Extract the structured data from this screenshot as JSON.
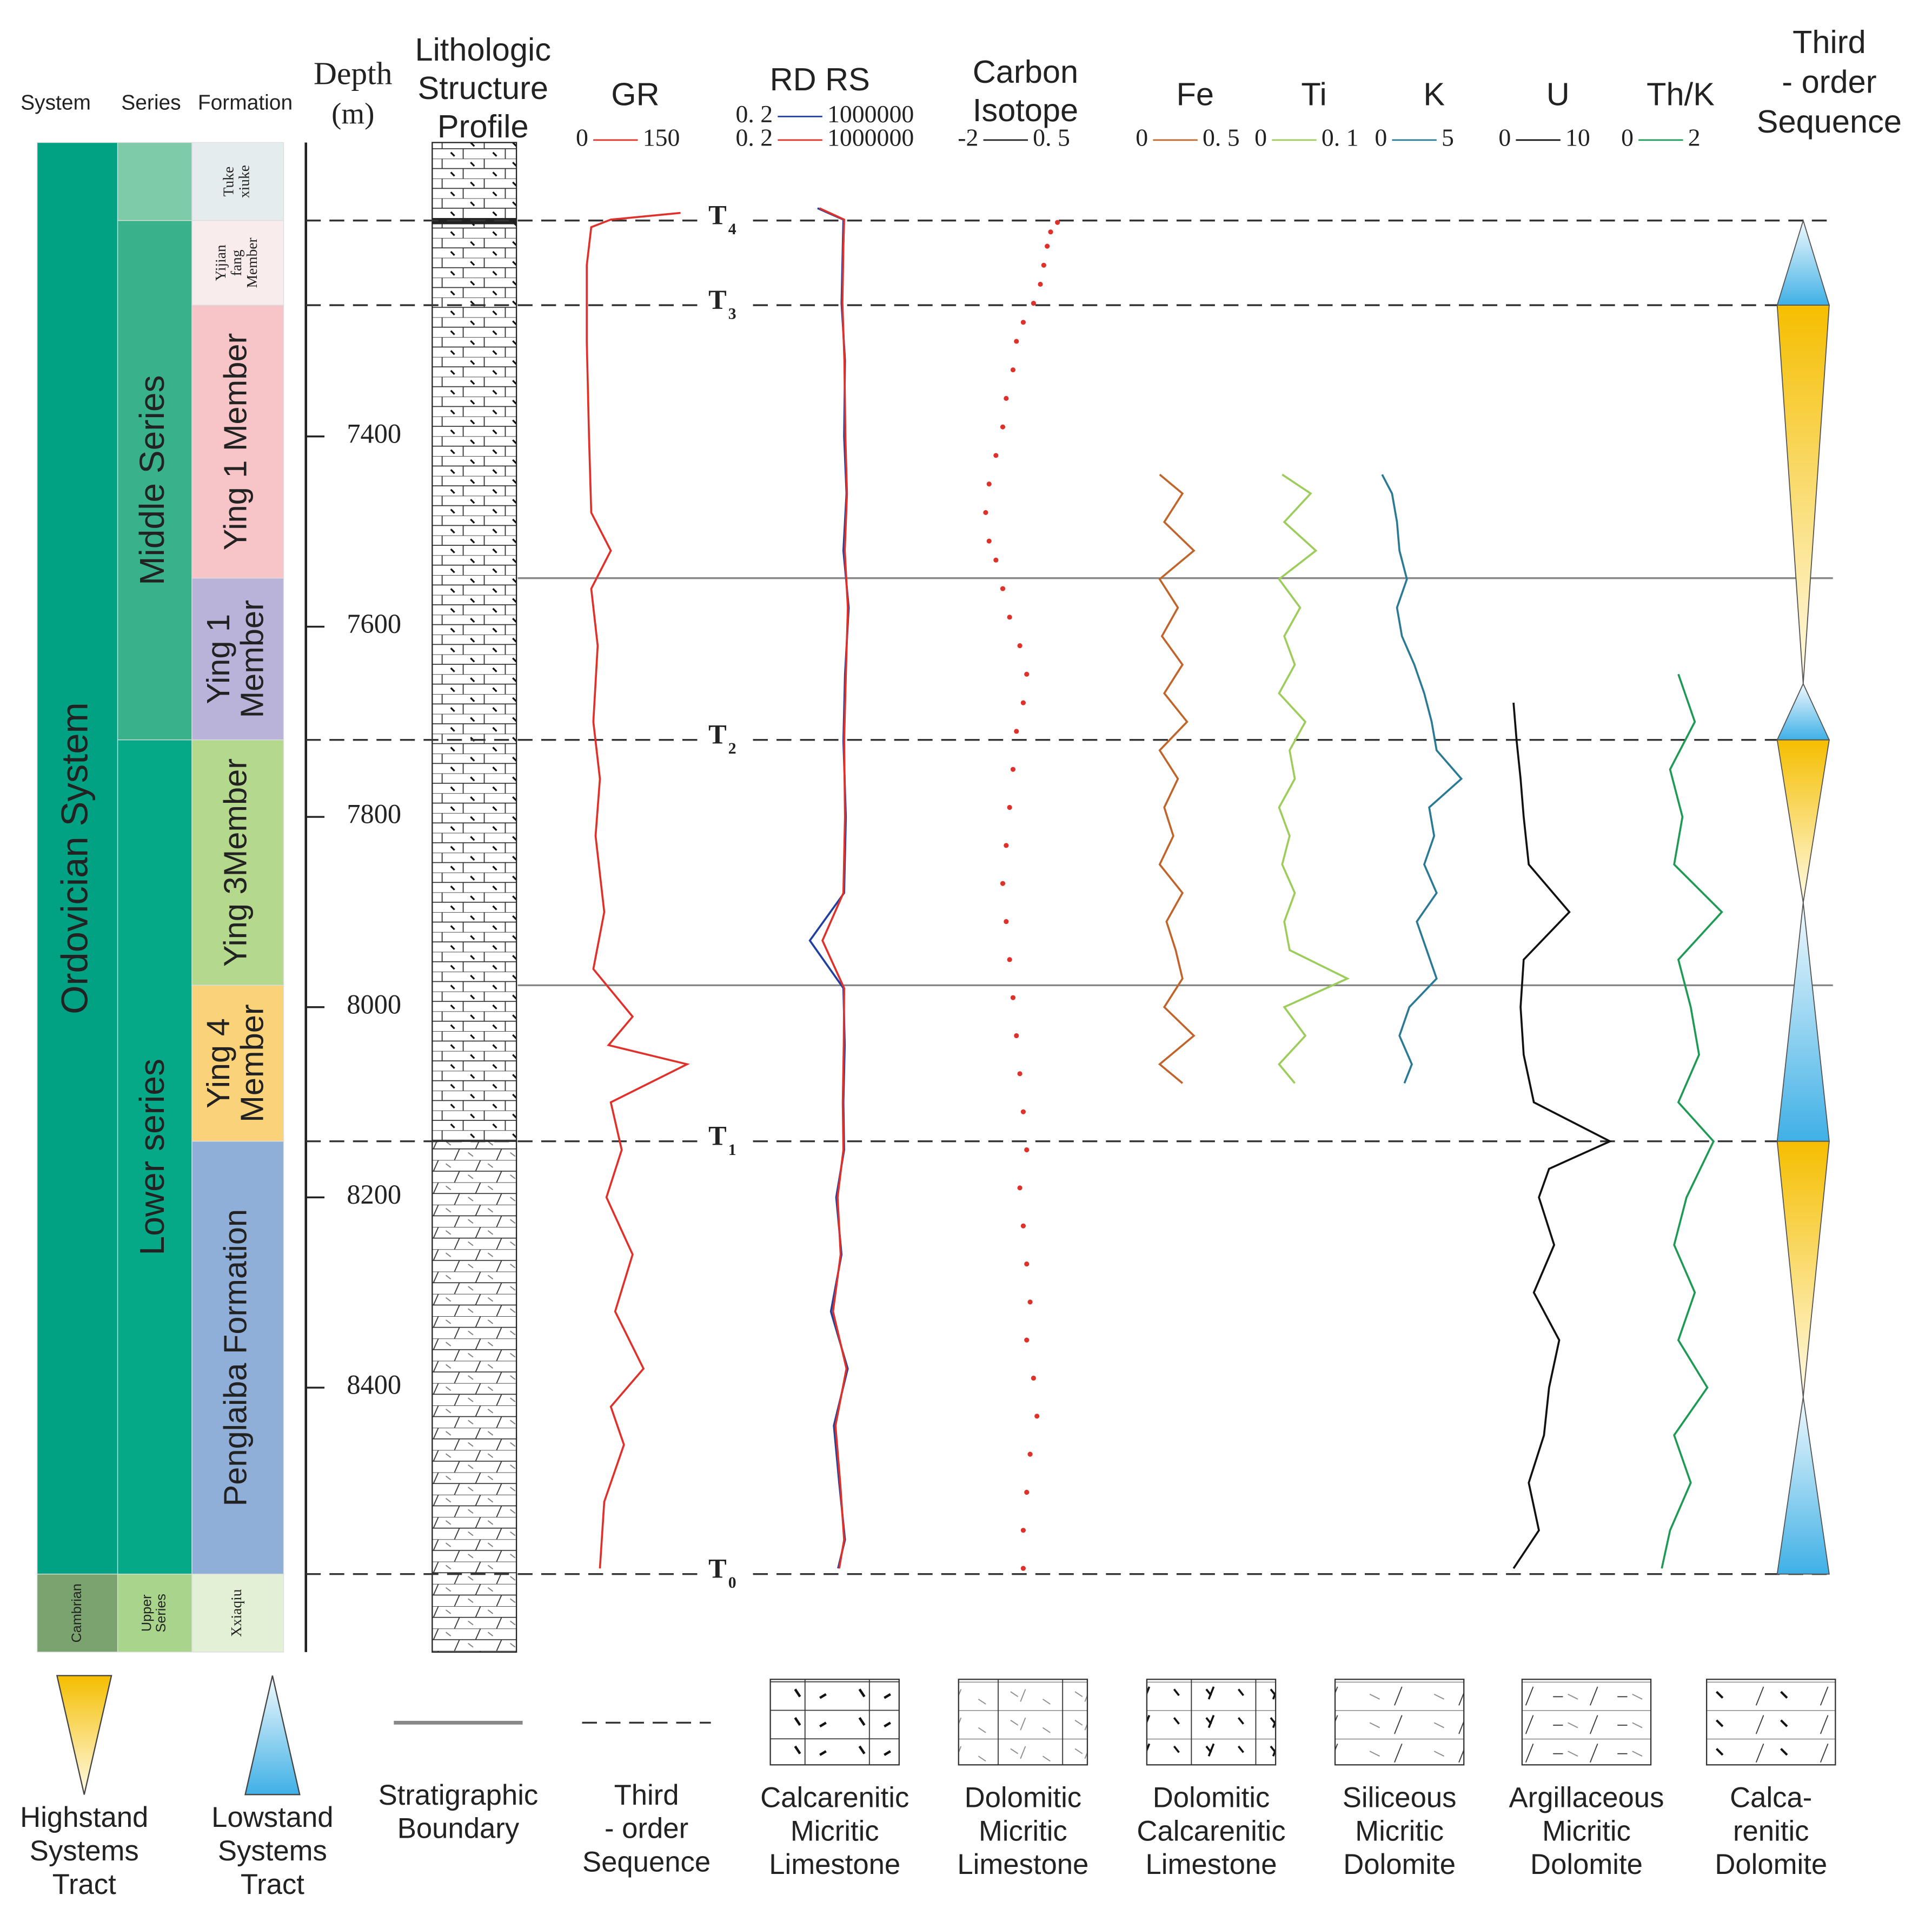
{
  "header": {
    "system": "System",
    "series": "Series",
    "formation": "Formation",
    "depth": "Depth",
    "depth_unit": "(m)",
    "lithology": [
      "Lithologic",
      "Structure",
      "Profile"
    ],
    "sequence": [
      "Third",
      "- order",
      "Sequence"
    ]
  },
  "depth_axis": {
    "range": [
      7091,
      8678
    ],
    "ticks": [
      7400,
      7600,
      7800,
      8000,
      8200,
      8400
    ]
  },
  "systems": [
    {
      "lines": [
        "Ordovician System"
      ],
      "top": 7091,
      "base": 8596,
      "color": "#00a283"
    },
    {
      "lines": [
        "Cambrian"
      ],
      "top": 8596,
      "base": 8678,
      "color": "#7aa36f"
    }
  ],
  "series": [
    {
      "top": 7091,
      "base": 7173,
      "color": "#7ecba7"
    },
    {
      "lines": [
        "Middle Series"
      ],
      "top": 7173,
      "base": 7719,
      "color": "#39b28b"
    },
    {
      "lines": [
        "Lower series"
      ],
      "top": 7719,
      "base": 8596,
      "color": "#05a887"
    },
    {
      "lines": [
        "Upper",
        "Series"
      ],
      "top": 8596,
      "base": 8678,
      "color": "#a8d48c"
    }
  ],
  "formations": [
    {
      "lines": [
        "Tuke",
        "xiuke"
      ],
      "top": 7091,
      "base": 7173,
      "color": "#e4ecee",
      "serif": true
    },
    {
      "lines": [
        "Yijian",
        "fang",
        "Member"
      ],
      "top": 7173,
      "base": 7262,
      "color": "#f8ecec",
      "serif": true
    },
    {
      "lines": [
        "Ying 1 Member"
      ],
      "top": 7262,
      "base": 7549,
      "color": "#f7c4c8"
    },
    {
      "lines": [
        "Ying 1",
        "Member"
      ],
      "top": 7549,
      "base": 7719,
      "color": "#b9b3d9"
    },
    {
      "lines": [
        "Ying 3Member"
      ],
      "top": 7719,
      "base": 7977,
      "color": "#b5d98c"
    },
    {
      "lines": [
        "Ying 4",
        "Member"
      ],
      "top": 7977,
      "base": 8141,
      "color": "#fad27a"
    },
    {
      "lines": [
        "Penglaiba Formation"
      ],
      "top": 8141,
      "base": 8596,
      "color": "#8faed8"
    },
    {
      "lines": [
        "Xxiaqiu"
      ],
      "top": 8596,
      "base": 8678,
      "color": "#e2f0d6",
      "serif": true
    }
  ],
  "boundaries": [
    {
      "label": "T",
      "sub": "4",
      "depth": 7173
    },
    {
      "label": "T",
      "sub": "3",
      "depth": 7262
    },
    {
      "label": "T",
      "sub": "2",
      "depth": 7719
    },
    {
      "label": "T",
      "sub": "1",
      "depth": 8141
    },
    {
      "label": "T",
      "sub": "0",
      "depth": 8596
    }
  ],
  "stratigraphic_lines": [
    7549,
    7977
  ],
  "sequences": [
    {
      "kind": "lowstand",
      "top": 7173,
      "base": 7262
    },
    {
      "kind": "highstand",
      "top": 7262,
      "base": 7660
    },
    {
      "kind": "lowstand",
      "top": 7660,
      "base": 7719
    },
    {
      "kind": "highstand",
      "top": 7719,
      "base": 7890
    },
    {
      "kind": "lowstand",
      "top": 7890,
      "base": 8141
    },
    {
      "kind": "highstand",
      "top": 8141,
      "base": 8410
    },
    {
      "kind": "lowstand",
      "top": 8410,
      "base": 8596
    }
  ],
  "tracks": [
    {
      "title": [
        "GR"
      ],
      "style": "line",
      "scales": [
        {
          "min": 0,
          "max": 150,
          "color": "#e0302a"
        }
      ],
      "depth": [
        7165,
        7172,
        7180,
        7220,
        7300,
        7400,
        7480,
        7520,
        7560,
        7620,
        7700,
        7760,
        7820,
        7900,
        7960,
        8010,
        8040,
        8060,
        8100,
        8150,
        8200,
        8260,
        8320,
        8380,
        8420,
        8460,
        8520,
        8590
      ],
      "series": [
        {
          "color": "#e0302a",
          "values": [
            104,
            40,
            22,
            18,
            18,
            20,
            22,
            40,
            22,
            28,
            24,
            30,
            26,
            34,
            24,
            60,
            38,
            110,
            40,
            50,
            36,
            60,
            44,
            70,
            40,
            52,
            34,
            30
          ]
        }
      ]
    },
    {
      "title": [
        "RD RS"
      ],
      "style": "line",
      "log": true,
      "scales": [
        {
          "min": {
            "value": 0.2,
            "label": "0. 2"
          },
          "max": 1000000,
          "color": "#2040a0"
        },
        {
          "min": {
            "value": 0.2,
            "label": "0. 2"
          },
          "max": 1000000,
          "color": "#e0302a"
        }
      ],
      "depth": [
        7160,
        7172,
        7200,
        7260,
        7320,
        7400,
        7460,
        7520,
        7580,
        7650,
        7720,
        7800,
        7880,
        7930,
        7980,
        8040,
        8100,
        8150,
        8200,
        8260,
        8320,
        8380,
        8440,
        8500,
        8560,
        8590
      ],
      "series": [
        {
          "color": "#2040a0",
          "values": [
            250,
            3000,
            2800,
            2500,
            3500,
            3200,
            4000,
            3000,
            5000,
            3500,
            3000,
            3800,
            3200,
            120,
            3000,
            3400,
            3000,
            3200,
            1500,
            2500,
            900,
            4500,
            1200,
            2000,
            3500,
            1800
          ]
        },
        {
          "color": "#e0302a",
          "values": [
            300,
            3200,
            3000,
            2700,
            3300,
            3600,
            4200,
            3400,
            4600,
            3800,
            3200,
            3500,
            3000,
            400,
            3200,
            3100,
            2800,
            3000,
            1700,
            2300,
            1100,
            4000,
            1400,
            2200,
            3200,
            2000
          ]
        }
      ]
    },
    {
      "title": [
        "Carbon",
        "Isotope"
      ],
      "style": "dots",
      "scales": [
        {
          "min": -2,
          "max": {
            "value": 0.5,
            "label": "0. 5"
          },
          "color": "#222222"
        }
      ],
      "depth": [
        7175,
        7185,
        7200,
        7220,
        7240,
        7260,
        7280,
        7300,
        7330,
        7360,
        7390,
        7420,
        7450,
        7480,
        7510,
        7530,
        7560,
        7590,
        7620,
        7650,
        7680,
        7710,
        7750,
        7790,
        7830,
        7870,
        7910,
        7950,
        7990,
        8030,
        8070,
        8110,
        8150,
        8190,
        8230,
        8270,
        8310,
        8350,
        8390,
        8430,
        8470,
        8510,
        8550,
        8590
      ],
      "series": [
        {
          "color": "#e0302a",
          "values": [
            -0.3,
            -0.4,
            -0.45,
            -0.5,
            -0.55,
            -0.65,
            -0.8,
            -0.9,
            -0.95,
            -1.05,
            -1.1,
            -1.2,
            -1.3,
            -1.35,
            -1.3,
            -1.2,
            -1.1,
            -1.0,
            -0.85,
            -0.75,
            -0.8,
            -0.9,
            -0.95,
            -1.0,
            -1.05,
            -1.1,
            -1.05,
            -1.0,
            -0.95,
            -0.9,
            -0.85,
            -0.8,
            -0.75,
            -0.85,
            -0.8,
            -0.75,
            -0.7,
            -0.75,
            -0.65,
            -0.6,
            -0.7,
            -0.75,
            -0.8,
            -0.8
          ]
        }
      ]
    },
    {
      "title": [
        "Fe"
      ],
      "style": "line",
      "scales": [
        {
          "min": 0,
          "max": {
            "value": 0.5,
            "label": "0. 5"
          },
          "color": "#c0642a"
        }
      ],
      "depth": [
        7440,
        7460,
        7490,
        7520,
        7550,
        7580,
        7610,
        7640,
        7670,
        7700,
        7730,
        7760,
        7790,
        7820,
        7850,
        7880,
        7910,
        7940,
        7970,
        8000,
        8030,
        8060,
        8080
      ],
      "series": [
        {
          "color": "#c0642a",
          "values": [
            0.1,
            0.2,
            0.12,
            0.25,
            0.1,
            0.18,
            0.11,
            0.2,
            0.12,
            0.22,
            0.1,
            0.18,
            0.12,
            0.16,
            0.1,
            0.2,
            0.13,
            0.17,
            0.2,
            0.12,
            0.25,
            0.1,
            0.2
          ]
        }
      ]
    },
    {
      "title": [
        "Ti"
      ],
      "style": "line",
      "scales": [
        {
          "min": 0,
          "max": {
            "value": 0.1,
            "label": "0. 1"
          },
          "color": "#9ccc5a"
        }
      ],
      "depth": [
        7440,
        7460,
        7490,
        7520,
        7550,
        7580,
        7610,
        7640,
        7670,
        7700,
        7730,
        7760,
        7790,
        7820,
        7850,
        7880,
        7910,
        7940,
        7970,
        8000,
        8030,
        8060,
        8080
      ],
      "series": [
        {
          "color": "#9ccc5a",
          "values": [
            0.018,
            0.045,
            0.02,
            0.05,
            0.015,
            0.035,
            0.02,
            0.03,
            0.015,
            0.04,
            0.025,
            0.03,
            0.015,
            0.025,
            0.018,
            0.03,
            0.02,
            0.025,
            0.08,
            0.02,
            0.04,
            0.015,
            0.03
          ]
        }
      ]
    },
    {
      "title": [
        "K"
      ],
      "style": "line",
      "scales": [
        {
          "min": 0,
          "max": 5,
          "color": "#2a7a96"
        }
      ],
      "depth": [
        7440,
        7460,
        7490,
        7520,
        7550,
        7580,
        7610,
        7640,
        7670,
        7700,
        7730,
        7760,
        7790,
        7820,
        7850,
        7880,
        7910,
        7940,
        7970,
        8000,
        8030,
        8060,
        8080
      ],
      "series": [
        {
          "color": "#2a7a96",
          "values": [
            0.8,
            1.2,
            1.4,
            1.5,
            1.8,
            1.4,
            1.6,
            2.1,
            2.5,
            2.8,
            3.0,
            4.0,
            2.7,
            2.9,
            2.5,
            3.0,
            2.2,
            2.6,
            3.0,
            1.9,
            1.5,
            2.0,
            1.7
          ]
        }
      ]
    },
    {
      "title": [
        "U"
      ],
      "style": "line",
      "scales": [
        {
          "min": 0,
          "max": 10,
          "color": "#111111"
        }
      ],
      "depth": [
        7680,
        7720,
        7760,
        7800,
        7850,
        7900,
        7950,
        8000,
        8050,
        8100,
        8141,
        8170,
        8200,
        8250,
        8300,
        8350,
        8400,
        8450,
        8500,
        8550,
        8590
      ],
      "series": [
        {
          "color": "#111111",
          "values": [
            0.5,
            0.8,
            1.2,
            1.5,
            2,
            6,
            1.5,
            1.2,
            1.5,
            2.5,
            10,
            4,
            3,
            4.5,
            2.5,
            5,
            4,
            3.5,
            2,
            3,
            0.5
          ]
        }
      ]
    },
    {
      "title": [
        "Th/K"
      ],
      "style": "line",
      "scales": [
        {
          "min": 0,
          "max": 2,
          "color": "#1f9a55"
        }
      ],
      "depth": [
        7650,
        7700,
        7750,
        7800,
        7850,
        7900,
        7950,
        8000,
        8050,
        8100,
        8141,
        8200,
        8250,
        8300,
        8350,
        8400,
        8450,
        8500,
        8550,
        8590
      ],
      "series": [
        {
          "color": "#1f9a55",
          "values": [
            0.9,
            1.3,
            0.7,
            1.0,
            0.8,
            1.95,
            0.9,
            1.2,
            1.4,
            0.9,
            1.75,
            1.1,
            0.8,
            1.3,
            0.9,
            1.6,
            0.8,
            1.2,
            0.7,
            0.5
          ]
        }
      ]
    }
  ],
  "legend": [
    {
      "kind": "highstand",
      "lines": [
        "Highstand",
        "Systems",
        "Tract"
      ]
    },
    {
      "kind": "lowstand",
      "lines": [
        "Lowstand",
        "Systems",
        "Tract"
      ]
    },
    {
      "kind": "stratigraphic",
      "lines": [
        "Stratigraphic",
        "Boundary"
      ]
    },
    {
      "kind": "sequence",
      "lines": [
        "Third",
        "- order",
        "Sequence"
      ]
    },
    {
      "kind": "pattern",
      "lines": [
        "Calcarenitic",
        "Micritic",
        "Limestone"
      ]
    },
    {
      "kind": "pattern",
      "lines": [
        "Dolomitic",
        "Micritic",
        "Limestone"
      ]
    },
    {
      "kind": "pattern",
      "lines": [
        "Dolomitic",
        "Calcarenitic",
        "Limestone"
      ]
    },
    {
      "kind": "pattern",
      "lines": [
        "Siliceous",
        "Micritic",
        "Dolomite"
      ]
    },
    {
      "kind": "pattern",
      "lines": [
        "Argillaceous",
        "Micritic",
        "Dolomite"
      ]
    },
    {
      "kind": "pattern",
      "lines": [
        "Calca-",
        "renitic",
        "Dolomite"
      ]
    }
  ]
}
